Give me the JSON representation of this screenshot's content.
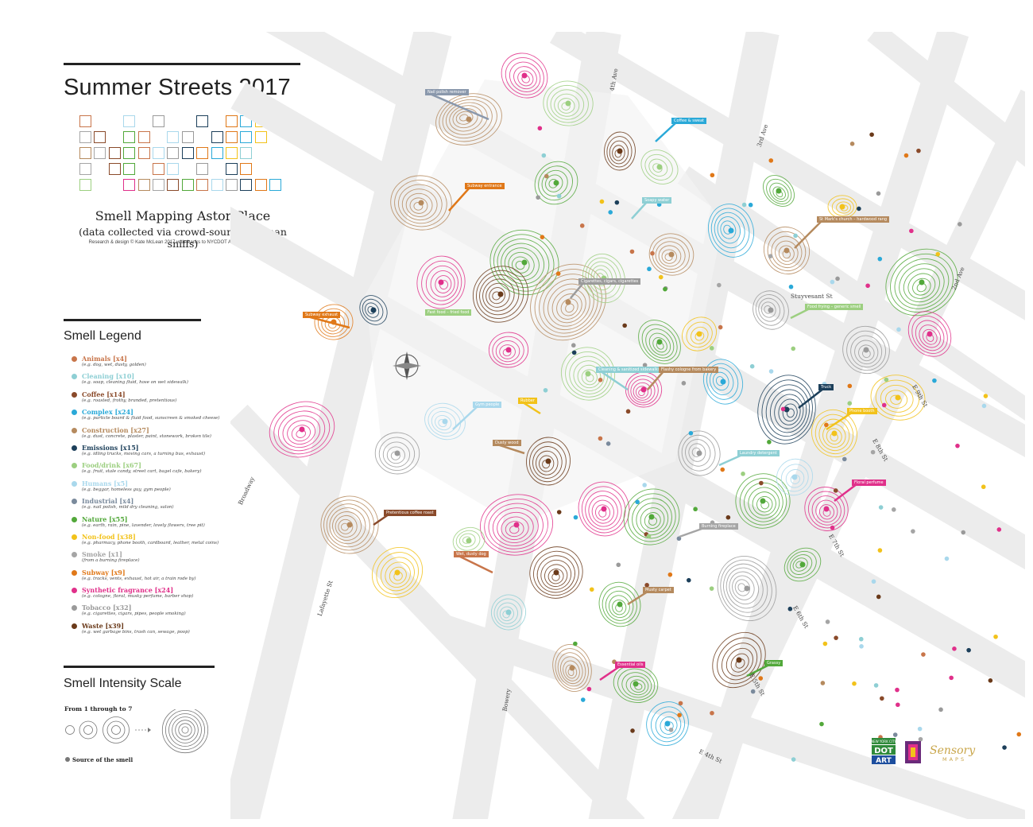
{
  "title": "Summer Streets 2017",
  "subtitle": "Smell Mapping Astor Place",
  "subtitle2": "(data collected via crowd-sourced human sniffs)",
  "credit": "Research & design © Kate McLean 2017 with thanks to NYCDOT Art and Village Alliance",
  "legend": {
    "heading": "Smell Legend",
    "items": [
      {
        "name": "Animals [x4]",
        "desc": "(e.g. dog, wet, dusty, golden)",
        "color": "#c8754a"
      },
      {
        "name": "Cleaning [x10]",
        "desc": "(e.g. soap, cleaning fluid, hose on wet sidewalk)",
        "color": "#8ecfd4"
      },
      {
        "name": "Coffee [x14]",
        "desc": "(e.g. roasted, frothy, branded, pretentious)",
        "color": "#8a4a2a"
      },
      {
        "name": "Complex [x24]",
        "desc": "(e.g. particle board & fluid food, sunscreen & smoked cheese)",
        "color": "#2aa9d8"
      },
      {
        "name": "Construction [x27]",
        "desc": "(e.g. dust, concrete, plaster, paint, stonework, broken tile)",
        "color": "#b58a5e"
      },
      {
        "name": "Emissions [x15]",
        "desc": "(e.g. idling trucks, moving cars, a turning bus, exhaust)",
        "color": "#1c3f5a"
      },
      {
        "name": "Food/drink [x67]",
        "desc": "(e.g. fruit, stale candy, street cart, bagel cafe, bakery)",
        "color": "#9ccf80"
      },
      {
        "name": "Humans [x5]",
        "desc": "(e.g. beggar, homeless guy, gym people)",
        "color": "#a9d8ec"
      },
      {
        "name": "Industrial [x4]",
        "desc": "(e.g. nail polish, mild dry cleaning, salon)",
        "color": "#7a8a9c"
      },
      {
        "name": "Nature [x55]",
        "desc": "(e.g. earth, rain, pine, lavender, lovely flowers, tree pit)",
        "color": "#52a83a"
      },
      {
        "name": "Non-food [x38]",
        "desc": "(e.g. pharmacy, phone booth, cardboard, leather, metal coins)",
        "color": "#f2c21a"
      },
      {
        "name": "Smoke [x1]",
        "desc": "(from a burning fireplace)",
        "color": "#a5a5a5"
      },
      {
        "name": "Subway [x9]",
        "desc": "(e.g. tracks, vents, exhaust, hot air, a train rode by)",
        "color": "#e07818"
      },
      {
        "name": "Synthetic fragrance [x24]",
        "desc": "(e.g. cologne, floral, musky perfume, barber shop)",
        "color": "#e0308a"
      },
      {
        "name": "Tobacco [x32]",
        "desc": "(e.g. cigarettes, cigars, pipes, people smoking)",
        "color": "#9a9a9a"
      },
      {
        "name": "Waste [x39]",
        "desc": "(e.g. wet garbage bins, trash can, sewage, poop)",
        "color": "#6a3a1a"
      }
    ]
  },
  "scale": {
    "heading": "Smell Intensity Scale",
    "from_text": "From 1 through to 7",
    "source_text": "Source of the smell",
    "min": 1,
    "max": 7
  },
  "streets": [
    {
      "text": "4th Ave"
    },
    {
      "text": "3rd Ave"
    },
    {
      "text": "2nd Ave"
    },
    {
      "text": "Stuyvesant St"
    },
    {
      "text": "E 9th St"
    },
    {
      "text": "E 8th St"
    },
    {
      "text": "E 7th St"
    },
    {
      "text": "E 6th St"
    },
    {
      "text": "E 5th St"
    },
    {
      "text": "E 4th St"
    },
    {
      "text": "Broadway"
    },
    {
      "text": "Lafayette St"
    },
    {
      "text": "Bowery"
    }
  ],
  "tags": [
    {
      "text": "Nail polish remover",
      "color": "#8a98ac"
    },
    {
      "text": "Coffee & sweat",
      "color": "#2aa9d8"
    },
    {
      "text": "Subway entrance",
      "color": "#e07818"
    },
    {
      "text": "Soapy water",
      "color": "#8ecfd4"
    },
    {
      "text": "St Mark's church – hardwood rang",
      "color": "#b58a5e"
    },
    {
      "text": "Cigarettes, cigars, cigarettes",
      "color": "#9a9a9a"
    },
    {
      "text": "Subway exhaust",
      "color": "#e07818"
    },
    {
      "text": "Food frying – generic smell",
      "color": "#9ccf80"
    },
    {
      "text": "Fast food – fried food",
      "color": "#9ccf80"
    },
    {
      "text": "Cleaning & sanitized sidewalks",
      "color": "#8ecfd4"
    },
    {
      "text": "Flashy cologne from bakery",
      "color": "#b58a5e"
    },
    {
      "text": "Truck",
      "color": "#1c3f5a"
    },
    {
      "text": "Gym people",
      "color": "#a9d8ec"
    },
    {
      "text": "Rubber",
      "color": "#f2c21a"
    },
    {
      "text": "Phone booth",
      "color": "#f2c21a"
    },
    {
      "text": "Dusty wood",
      "color": "#b58a5e"
    },
    {
      "text": "Laundry detergent",
      "color": "#8ecfd4"
    },
    {
      "text": "Floral perfume",
      "color": "#e0308a"
    },
    {
      "text": "Pretentious coffee roast",
      "color": "#8a4a2a"
    },
    {
      "text": "Burning fireplace",
      "color": "#a5a5a5"
    },
    {
      "text": "Wet, dusty dog",
      "color": "#c8754a"
    },
    {
      "text": "Musty carpet",
      "color": "#b58a5e"
    },
    {
      "text": "Essential oils",
      "color": "#e0308a"
    },
    {
      "text": "Grassy",
      "color": "#52a83a"
    }
  ],
  "logos": {
    "nyc_top": "NEW YORK CITY",
    "dot": "DOT",
    "art": "ART",
    "sensory": "Sensory",
    "maps": "MAPS"
  }
}
